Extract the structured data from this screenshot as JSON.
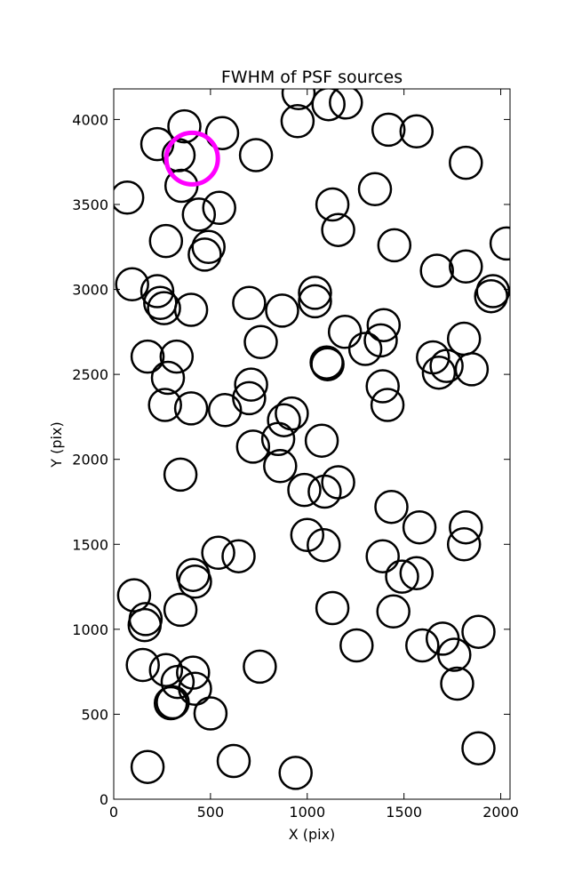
{
  "chart_data": {
    "type": "scatter",
    "title": "FWHM of PSF sources",
    "xlabel": "X (pix)",
    "ylabel": "Y (pix)",
    "xlim": [
      0,
      2048
    ],
    "ylim": [
      0,
      4180
    ],
    "xticks": [
      "0",
      "500",
      "1000",
      "1500",
      "2000"
    ],
    "yticks": [
      "0",
      "500",
      "1000",
      "1500",
      "2000",
      "2500",
      "3000",
      "3500",
      "4000"
    ],
    "marker": "open-circle",
    "grid": false,
    "series": [
      {
        "color": "#000000",
        "points": [
          [
            365,
            3960
          ],
          [
            225,
            3855
          ],
          [
            560,
            3920
          ],
          [
            335,
            3790
          ],
          [
            735,
            3790
          ],
          [
            950,
            3990
          ],
          [
            955,
            4155
          ],
          [
            1110,
            4090
          ],
          [
            1200,
            4100
          ],
          [
            1420,
            3940
          ],
          [
            1565,
            3930
          ],
          [
            1820,
            3745
          ],
          [
            70,
            3540
          ],
          [
            350,
            3610
          ],
          [
            440,
            3440
          ],
          [
            545,
            3480
          ],
          [
            1130,
            3500
          ],
          [
            1160,
            3350
          ],
          [
            1350,
            3590
          ],
          [
            270,
            3285
          ],
          [
            490,
            3250
          ],
          [
            470,
            3205
          ],
          [
            1450,
            3260
          ],
          [
            2030,
            3270
          ],
          [
            95,
            3030
          ],
          [
            225,
            2990
          ],
          [
            240,
            2920
          ],
          [
            260,
            2890
          ],
          [
            400,
            2880
          ],
          [
            1040,
            2980
          ],
          [
            1040,
            2930
          ],
          [
            700,
            2920
          ],
          [
            870,
            2875
          ],
          [
            1960,
            2990
          ],
          [
            1950,
            2960
          ],
          [
            1670,
            3110
          ],
          [
            1820,
            3135
          ],
          [
            1195,
            2750
          ],
          [
            1395,
            2790
          ],
          [
            1380,
            2700
          ],
          [
            1810,
            2710
          ],
          [
            760,
            2690
          ],
          [
            1300,
            2650
          ],
          [
            175,
            2605
          ],
          [
            325,
            2605
          ],
          [
            1105,
            2560
          ],
          [
            1100,
            2570
          ],
          [
            1650,
            2600
          ],
          [
            1720,
            2550
          ],
          [
            1680,
            2510
          ],
          [
            1850,
            2530
          ],
          [
            280,
            2480
          ],
          [
            710,
            2440
          ],
          [
            700,
            2360
          ],
          [
            1390,
            2430
          ],
          [
            1415,
            2320
          ],
          [
            265,
            2320
          ],
          [
            400,
            2300
          ],
          [
            575,
            2290
          ],
          [
            920,
            2270
          ],
          [
            880,
            2230
          ],
          [
            1075,
            2110
          ],
          [
            850,
            2120
          ],
          [
            720,
            2075
          ],
          [
            860,
            1960
          ],
          [
            345,
            1910
          ],
          [
            985,
            1820
          ],
          [
            1090,
            1810
          ],
          [
            1160,
            1865
          ],
          [
            1435,
            1720
          ],
          [
            1580,
            1600
          ],
          [
            1820,
            1600
          ],
          [
            1810,
            1500
          ],
          [
            1000,
            1555
          ],
          [
            1085,
            1495
          ],
          [
            1390,
            1430
          ],
          [
            1490,
            1310
          ],
          [
            1565,
            1330
          ],
          [
            540,
            1450
          ],
          [
            645,
            1430
          ],
          [
            410,
            1320
          ],
          [
            420,
            1280
          ],
          [
            105,
            1200
          ],
          [
            165,
            1060
          ],
          [
            160,
            1025
          ],
          [
            345,
            1115
          ],
          [
            1130,
            1125
          ],
          [
            1445,
            1105
          ],
          [
            1255,
            905
          ],
          [
            1595,
            905
          ],
          [
            1700,
            945
          ],
          [
            1760,
            850
          ],
          [
            1885,
            985
          ],
          [
            1775,
            680
          ],
          [
            755,
            780
          ],
          [
            150,
            790
          ],
          [
            270,
            760
          ],
          [
            330,
            690
          ],
          [
            410,
            745
          ],
          [
            420,
            650
          ],
          [
            305,
            570
          ],
          [
            295,
            565
          ],
          [
            500,
            505
          ],
          [
            175,
            190
          ],
          [
            620,
            225
          ],
          [
            940,
            155
          ],
          [
            1885,
            300
          ]
        ]
      },
      {
        "color": "#ff00ff",
        "points": [
          [
            405,
            3770
          ]
        ]
      }
    ]
  }
}
